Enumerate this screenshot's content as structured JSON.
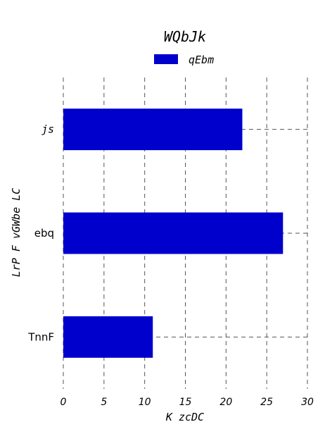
{
  "chart_data": {
    "type": "bar",
    "orientation": "horizontal",
    "title": "WQbJk",
    "xlabel": "K zcDC",
    "ylabel": "LrP F vGWbe LC",
    "categories": [
      "js",
      "ebq",
      "TnnF"
    ],
    "series": [
      {
        "name": "qEbm",
        "values": [
          22,
          27,
          11
        ],
        "color": "#0000cc"
      }
    ],
    "xlim": [
      0,
      30
    ],
    "xticks": [
      "0",
      "5",
      "10",
      "15",
      "20",
      "25",
      "30"
    ],
    "grid": true,
    "grid_style": "dashed",
    "legend_position": "top-center"
  }
}
